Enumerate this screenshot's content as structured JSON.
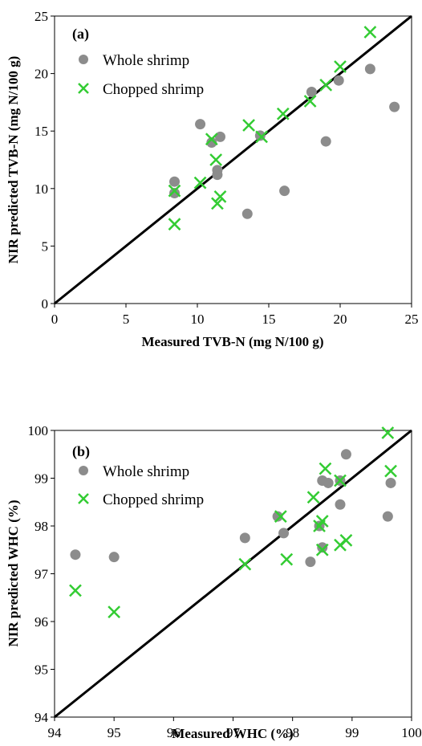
{
  "chart_data": [
    {
      "type": "scatter",
      "panel_label": "(a)",
      "xlabel": "Measured TVB-N (mg N/100 g)",
      "ylabel": "NIR predicted TVB-N (mg N/100 g)",
      "xlim": [
        0,
        25
      ],
      "ylim": [
        0,
        25
      ],
      "xticks": [
        0,
        5,
        10,
        15,
        20,
        25
      ],
      "yticks": [
        0,
        5,
        10,
        15,
        20,
        25
      ],
      "reference_line": "y = x",
      "grid": false,
      "legend_position": "top-left",
      "series": [
        {
          "name": "Whole shrimp",
          "marker": "circle",
          "color": "#8c8c8c",
          "points": [
            [
              8.4,
              10.6
            ],
            [
              8.4,
              9.6
            ],
            [
              10.2,
              15.6
            ],
            [
              11.0,
              14.0
            ],
            [
              11.4,
              11.6
            ],
            [
              11.4,
              11.2
            ],
            [
              11.6,
              14.5
            ],
            [
              13.5,
              7.8
            ],
            [
              14.4,
              14.6
            ],
            [
              16.1,
              9.8
            ],
            [
              18.0,
              18.4
            ],
            [
              19.0,
              14.1
            ],
            [
              19.9,
              19.4
            ],
            [
              22.1,
              20.4
            ],
            [
              23.8,
              17.1
            ]
          ]
        },
        {
          "name": "Chopped shrimp",
          "marker": "x",
          "color": "#33cc33",
          "points": [
            [
              8.4,
              6.9
            ],
            [
              8.4,
              9.8
            ],
            [
              10.2,
              10.5
            ],
            [
              11.0,
              14.3
            ],
            [
              11.3,
              12.5
            ],
            [
              11.4,
              8.7
            ],
            [
              11.6,
              9.3
            ],
            [
              13.6,
              15.5
            ],
            [
              14.5,
              14.5
            ],
            [
              16.0,
              16.5
            ],
            [
              17.9,
              17.6
            ],
            [
              19.0,
              19.0
            ],
            [
              20.0,
              20.6
            ],
            [
              22.1,
              23.6
            ]
          ]
        }
      ]
    },
    {
      "type": "scatter",
      "panel_label": "(b)",
      "xlabel": "Measured WHC (%)",
      "ylabel": "NIR predicted WHC (%)",
      "xlim": [
        94,
        100
      ],
      "ylim": [
        94,
        100
      ],
      "xticks": [
        94,
        95,
        96,
        97,
        98,
        99,
        100
      ],
      "yticks": [
        94,
        95,
        96,
        97,
        98,
        99,
        100
      ],
      "reference_line": "y = x",
      "grid": false,
      "legend_position": "top-left",
      "series": [
        {
          "name": "Whole shrimp",
          "marker": "circle",
          "color": "#8c8c8c",
          "points": [
            [
              94.35,
              97.4
            ],
            [
              95.0,
              97.35
            ],
            [
              97.2,
              97.75
            ],
            [
              97.75,
              98.2
            ],
            [
              97.85,
              97.85
            ],
            [
              98.3,
              97.25
            ],
            [
              98.45,
              98.0
            ],
            [
              98.5,
              97.55
            ],
            [
              98.5,
              98.95
            ],
            [
              98.6,
              98.9
            ],
            [
              98.8,
              98.45
            ],
            [
              98.8,
              98.95
            ],
            [
              98.9,
              99.5
            ],
            [
              99.6,
              98.2
            ],
            [
              99.65,
              98.9
            ]
          ]
        },
        {
          "name": "Chopped shrimp",
          "marker": "x",
          "color": "#33cc33",
          "points": [
            [
              94.35,
              96.65
            ],
            [
              95.0,
              96.2
            ],
            [
              97.2,
              97.2
            ],
            [
              97.8,
              98.2
            ],
            [
              97.9,
              97.3
            ],
            [
              98.35,
              98.6
            ],
            [
              98.45,
              98.0
            ],
            [
              98.5,
              97.5
            ],
            [
              98.5,
              98.1
            ],
            [
              98.55,
              99.2
            ],
            [
              98.8,
              97.6
            ],
            [
              98.8,
              98.95
            ],
            [
              98.9,
              97.7
            ],
            [
              99.6,
              99.95
            ],
            [
              99.65,
              99.15
            ]
          ]
        }
      ]
    }
  ]
}
